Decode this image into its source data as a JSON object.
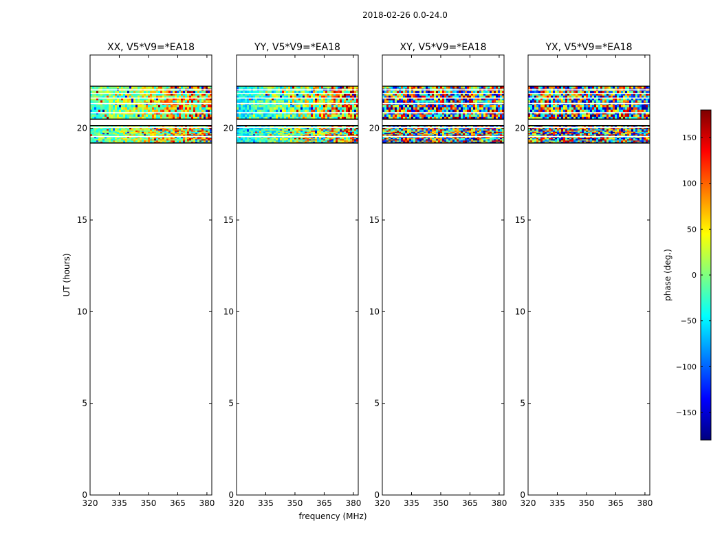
{
  "figure": {
    "suptitle": "2018-02-26 0.0-24.0",
    "xlabel": "frequency (MHz)",
    "ylabel": "UT (hours)"
  },
  "chart_data": {
    "type": "heatmap",
    "colormap": "jet",
    "x_range": [
      320,
      382.5
    ],
    "x_ticks": [
      320,
      335,
      350,
      365,
      380
    ],
    "x_tick_labels": [
      "320",
      "335",
      "350",
      "365",
      "380"
    ],
    "y_range": [
      0,
      24
    ],
    "y_ticks": [
      0,
      5,
      10,
      15,
      20
    ],
    "y_tick_labels": [
      "0",
      "5",
      "10",
      "15",
      "20"
    ],
    "grid": false,
    "data_bands_ut": [
      [
        19.2,
        20.15
      ],
      [
        20.5,
        22.3
      ]
    ],
    "gap_lines_ut": [
      19.55,
      20.05,
      20.85,
      21.35,
      21.65,
      21.9,
      22.1
    ],
    "panels": [
      {
        "title": "XX, V5*V9=*EA18",
        "phase_pattern": "structured"
      },
      {
        "title": "YY, V5*V9=*EA18",
        "phase_pattern": "structured"
      },
      {
        "title": "XY, V5*V9=*EA18",
        "phase_pattern": "noise"
      },
      {
        "title": "YX, V5*V9=*EA18",
        "phase_pattern": "noise"
      }
    ],
    "colorbar": {
      "label": "phase (deg.)",
      "range": [
        -180,
        180
      ],
      "ticks": [
        -150,
        -100,
        -50,
        0,
        50,
        100,
        150
      ],
      "tick_labels": [
        "−150",
        "−100",
        "−50",
        "0",
        "50",
        "100",
        "150"
      ]
    }
  }
}
